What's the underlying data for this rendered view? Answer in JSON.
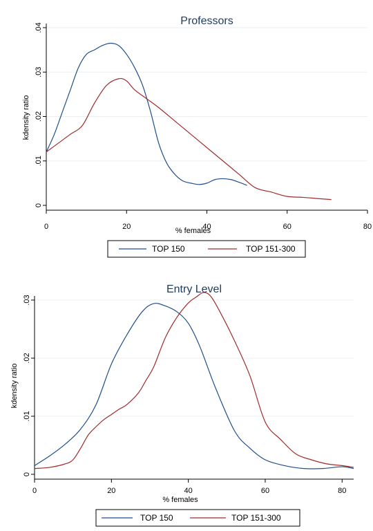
{
  "chart_data": [
    {
      "type": "line",
      "title": "Professors",
      "xlabel": "% females",
      "ylabel": "kdensity ratio",
      "xlim": [
        0,
        80
      ],
      "ylim": [
        0,
        0.04
      ],
      "xticks": [
        "0",
        "20",
        "40",
        "60",
        "80"
      ],
      "xtick_values": [
        0,
        20,
        40,
        60,
        80
      ],
      "yticks": [
        "0",
        ".01",
        ".02",
        ".03",
        ".04"
      ],
      "ytick_values": [
        0,
        0.01,
        0.02,
        0.03,
        0.04
      ],
      "grid": true,
      "legend_position": "bottom",
      "series": [
        {
          "name": "TOP 150",
          "color": "#1f4e8c",
          "x": [
            0,
            2,
            4,
            6,
            8,
            10,
            12,
            14,
            16,
            18,
            20,
            22,
            24,
            26,
            28,
            30,
            32,
            34,
            36,
            38,
            40,
            42,
            44,
            46,
            48,
            50
          ],
          "y": [
            0.012,
            0.016,
            0.021,
            0.026,
            0.031,
            0.034,
            0.035,
            0.036,
            0.0365,
            0.036,
            0.034,
            0.031,
            0.027,
            0.021,
            0.014,
            0.0095,
            0.007,
            0.0055,
            0.005,
            0.0047,
            0.005,
            0.0058,
            0.006,
            0.0058,
            0.0052,
            0.0045
          ]
        },
        {
          "name": "TOP 151-300",
          "color": "#a22a2a",
          "x": [
            0,
            3,
            6,
            9,
            12,
            15,
            18,
            20,
            22,
            25,
            28,
            32,
            36,
            40,
            44,
            48,
            52,
            56,
            60,
            64,
            68,
            71
          ],
          "y": [
            0.012,
            0.014,
            0.016,
            0.018,
            0.023,
            0.027,
            0.0285,
            0.028,
            0.026,
            0.024,
            0.022,
            0.019,
            0.016,
            0.013,
            0.01,
            0.007,
            0.004,
            0.003,
            0.002,
            0.0018,
            0.0015,
            0.0013
          ]
        }
      ]
    },
    {
      "type": "line",
      "title": "Entry Level",
      "xlabel": "% females",
      "ylabel": "kdensity ratio",
      "xlim": [
        0,
        83
      ],
      "ylim": [
        0,
        0.03
      ],
      "xticks": [
        "0",
        "20",
        "40",
        "60",
        "80"
      ],
      "xtick_values": [
        0,
        20,
        40,
        60,
        80
      ],
      "yticks": [
        "0",
        ".01",
        ".02",
        ".03"
      ],
      "ytick_values": [
        0,
        0.01,
        0.02,
        0.03
      ],
      "grid": true,
      "legend_position": "bottom",
      "series": [
        {
          "name": "TOP 150",
          "color": "#1f4e8c",
          "x": [
            0,
            4,
            8,
            12,
            16,
            20,
            24,
            28,
            31,
            34,
            37,
            40,
            43,
            47,
            52,
            56,
            60,
            65,
            70,
            75,
            80,
            83
          ],
          "y": [
            0.0015,
            0.0032,
            0.0052,
            0.0078,
            0.012,
            0.019,
            0.024,
            0.028,
            0.0294,
            0.029,
            0.028,
            0.026,
            0.022,
            0.015,
            0.0075,
            0.0045,
            0.0025,
            0.0015,
            0.001,
            0.001,
            0.0013,
            0.001
          ]
        },
        {
          "name": "TOP 151-300",
          "color": "#a22a2a",
          "x": [
            0,
            4,
            8,
            10,
            12,
            14,
            16,
            18,
            20,
            22,
            24,
            27,
            29,
            31,
            34,
            37,
            40,
            42,
            44,
            46,
            49,
            52,
            56,
            60,
            64,
            68,
            72,
            76,
            80,
            83
          ],
          "y": [
            0.001,
            0.0012,
            0.0018,
            0.0025,
            0.0045,
            0.0068,
            0.0082,
            0.0094,
            0.0103,
            0.0112,
            0.012,
            0.014,
            0.0162,
            0.0185,
            0.0235,
            0.027,
            0.0295,
            0.0305,
            0.0313,
            0.0305,
            0.027,
            0.023,
            0.017,
            0.009,
            0.006,
            0.0035,
            0.0025,
            0.0018,
            0.0015,
            0.0012
          ]
        }
      ]
    }
  ]
}
